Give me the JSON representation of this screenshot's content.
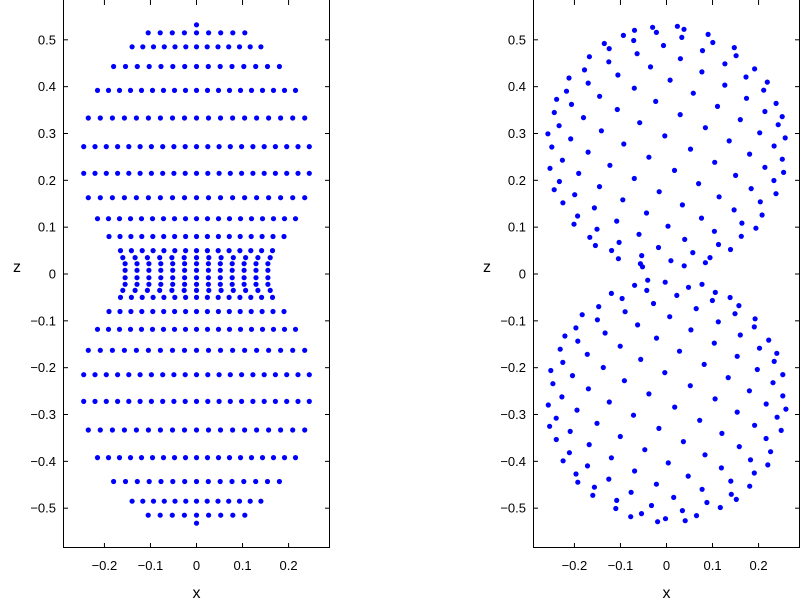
{
  "chart_data": [
    {
      "type": "scatter",
      "title": "",
      "xlabel": "x",
      "ylabel": "z",
      "xlim": [
        -0.29,
        0.29
      ],
      "ylim": [
        -0.585,
        0.585
      ],
      "xticks": [
        -0.2,
        -0.1,
        0,
        0.1,
        0.2
      ],
      "xtick_labels": [
        "−0.2",
        "−0.1",
        "0",
        "0.1",
        "0.2"
      ],
      "yticks": [
        -0.5,
        -0.4,
        -0.3,
        -0.2,
        -0.1,
        0,
        0.1,
        0.2,
        0.3,
        0.4,
        0.5
      ],
      "ytick_labels": [
        "−0.5",
        "−0.4",
        "−0.3",
        "−0.2",
        "−0.1",
        "0",
        "0.1",
        "0.2",
        "0.3",
        "0.4",
        "0.5"
      ],
      "grid": false,
      "marker_color": "#0000ff",
      "layout": "rows",
      "rows": [
        {
          "z": 0.532,
          "xmax": 0.0
        },
        {
          "z": 0.515,
          "xmax": 0.105
        },
        {
          "z": 0.485,
          "xmax": 0.14
        },
        {
          "z": 0.443,
          "xmax": 0.18
        },
        {
          "z": 0.392,
          "xmax": 0.215
        },
        {
          "z": 0.333,
          "xmax": 0.235
        },
        {
          "z": 0.272,
          "xmax": 0.245
        },
        {
          "z": 0.215,
          "xmax": 0.245
        },
        {
          "z": 0.163,
          "xmax": 0.235
        },
        {
          "z": 0.118,
          "xmax": 0.215
        },
        {
          "z": 0.08,
          "xmax": 0.19
        },
        {
          "z": 0.05,
          "xmax": 0.165
        },
        {
          "z": 0.035,
          "xmax": 0.16
        },
        {
          "z": 0.022,
          "xmax": 0.155
        },
        {
          "z": 0.008,
          "xmax": 0.155
        },
        {
          "z": -0.008,
          "xmax": 0.155
        },
        {
          "z": -0.022,
          "xmax": 0.155
        },
        {
          "z": -0.035,
          "xmax": 0.16
        },
        {
          "z": -0.05,
          "xmax": 0.165
        },
        {
          "z": -0.08,
          "xmax": 0.19
        },
        {
          "z": -0.118,
          "xmax": 0.215
        },
        {
          "z": -0.163,
          "xmax": 0.235
        },
        {
          "z": -0.215,
          "xmax": 0.245
        },
        {
          "z": -0.272,
          "xmax": 0.245
        },
        {
          "z": -0.333,
          "xmax": 0.235
        },
        {
          "z": -0.392,
          "xmax": 0.215
        },
        {
          "z": -0.443,
          "xmax": 0.18
        },
        {
          "z": -0.485,
          "xmax": 0.14
        },
        {
          "z": -0.515,
          "xmax": 0.105
        },
        {
          "z": -0.532,
          "xmax": 0.0
        }
      ]
    },
    {
      "type": "scatter",
      "title": "",
      "xlabel": "x",
      "ylabel": "z",
      "xlim": [
        -0.29,
        0.29
      ],
      "ylim": [
        -0.585,
        0.585
      ],
      "xticks": [
        -0.2,
        -0.1,
        0,
        0.1,
        0.2
      ],
      "xtick_labels": [
        "−0.2",
        "−0.1",
        "0",
        "0.1",
        "0.2"
      ],
      "yticks": [
        -0.5,
        -0.4,
        -0.3,
        -0.2,
        -0.1,
        0,
        0.1,
        0.2,
        0.3,
        0.4,
        0.5
      ],
      "ytick_labels": [
        "−0.5",
        "−0.4",
        "−0.3",
        "−0.2",
        "−0.1",
        "0",
        "0.1",
        "0.2",
        "0.3",
        "0.4",
        "0.5"
      ],
      "grid": false,
      "marker_color": "#0000ff",
      "layout": "two-lobe-spiral",
      "lobe_center_z": 0.27,
      "lobe_radius": 0.26,
      "points_per_lobe": 240
    }
  ]
}
